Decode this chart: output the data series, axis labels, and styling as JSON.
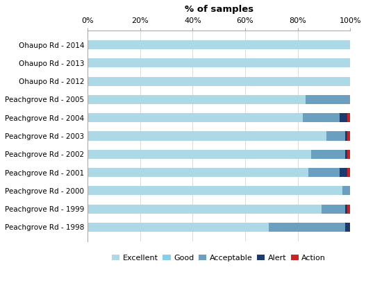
{
  "categories": [
    "Ohaupo Rd - 2014",
    "Ohaupo Rd - 2013",
    "Ohaupo Rd - 2012",
    "Peachgrove Rd - 2005",
    "Peachgrove Rd - 2004",
    "Peachgrove Rd - 2003",
    "Peachgrove Rd - 2002",
    "Peachgrove Rd - 2001",
    "Peachgrove Rd - 2000",
    "Peachgrove Rd - 1999",
    "Peachgrove Rd - 1998"
  ],
  "series": {
    "Excellent": [
      100,
      100,
      100,
      83,
      82,
      91,
      85,
      84,
      97,
      89,
      69
    ],
    "Good": [
      0,
      0,
      0,
      0,
      0,
      0,
      0,
      0,
      0,
      0,
      0
    ],
    "Acceptable": [
      0,
      0,
      0,
      17,
      14,
      7,
      13,
      12,
      3,
      9,
      29
    ],
    "Alert": [
      0,
      0,
      0,
      0,
      3,
      1,
      1,
      3,
      0,
      1,
      2
    ],
    "Action": [
      0,
      0,
      0,
      0,
      1,
      1,
      1,
      1,
      0,
      1,
      0
    ]
  },
  "colors": {
    "Excellent": "#add8e6",
    "Good": "#87ceeb",
    "Acceptable": "#6a9fc0",
    "Alert": "#1c3a6e",
    "Action": "#cc2222"
  },
  "title": "% of samples",
  "xlim": [
    0,
    100
  ],
  "xtick_labels": [
    "0%",
    "20%",
    "40%",
    "60%",
    "80%",
    "100%"
  ],
  "xtick_values": [
    0,
    20,
    40,
    60,
    80,
    100
  ],
  "background_color": "#ffffff",
  "bar_height": 0.5,
  "legend_labels": [
    "Excellent",
    "Good",
    "Acceptable",
    "Alert",
    "Action"
  ],
  "figwidth": 5.27,
  "figheight": 4.18,
  "dpi": 100
}
